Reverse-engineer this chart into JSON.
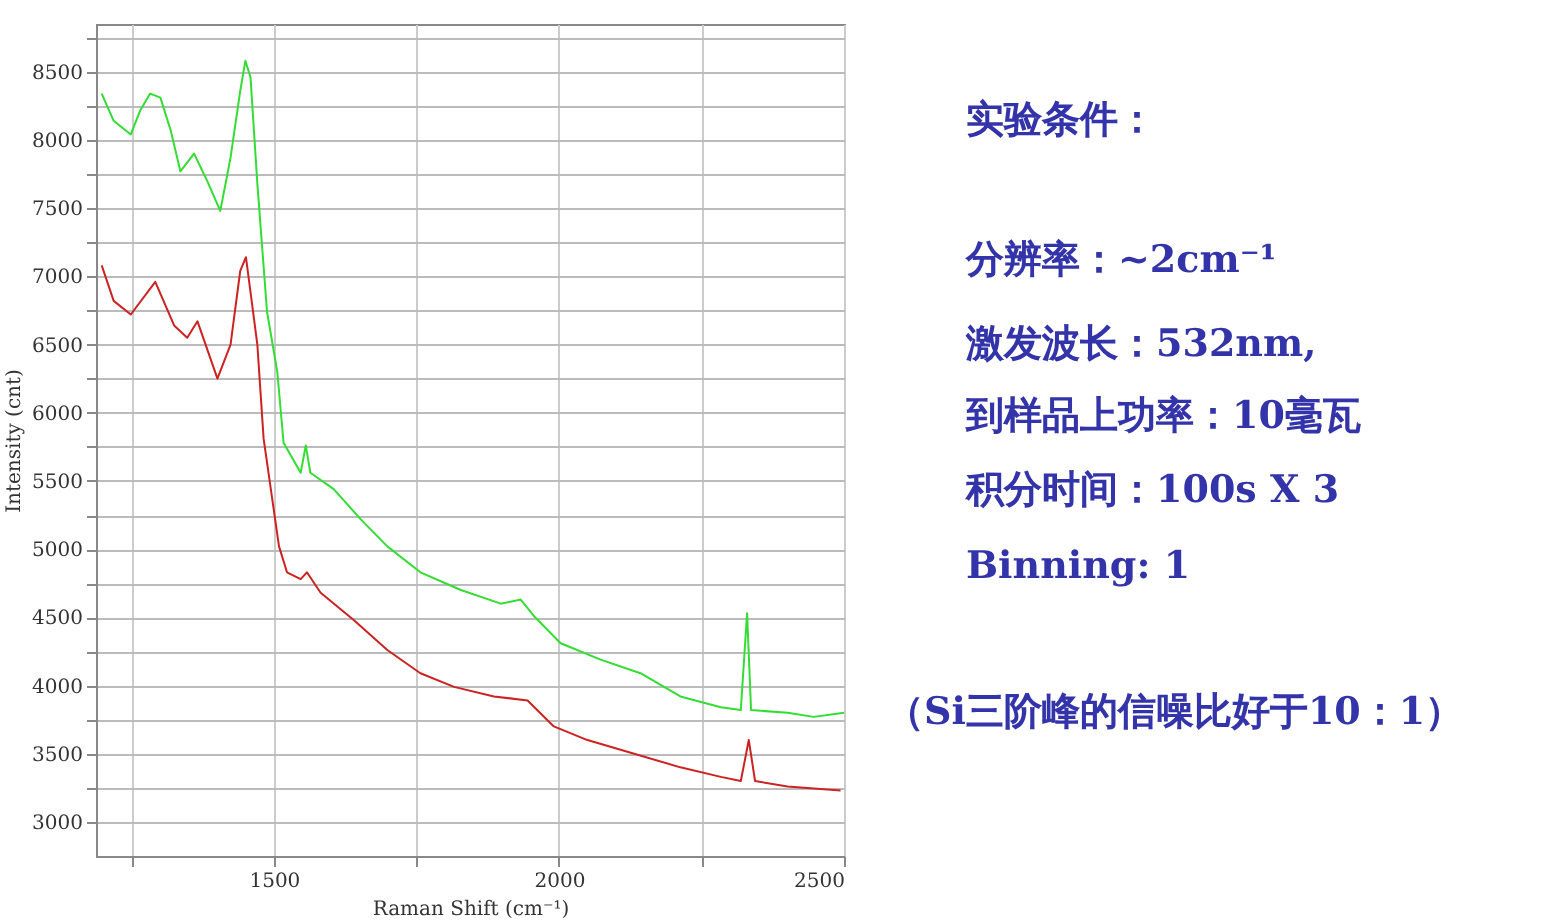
{
  "chart_data": {
    "type": "line",
    "xlabel": "Raman Shift (cm⁻¹)",
    "ylabel": "Intensity (cnt)",
    "xlim": [
      1188,
      2500
    ],
    "ylim": [
      2750,
      8850
    ],
    "xticks": [
      {
        "value": 1250,
        "label": null
      },
      1500,
      {
        "value": 1750,
        "label": null
      },
      2000,
      {
        "value": 2250,
        "label": null
      },
      2500
    ],
    "yticks": [
      3000,
      {
        "value": 3250,
        "label": null
      },
      3500,
      {
        "value": 3750,
        "label": null
      },
      4000,
      {
        "value": 4250,
        "label": null
      },
      4500,
      {
        "value": 4750,
        "label": null
      },
      5000,
      {
        "value": 5250,
        "label": null
      },
      5500,
      {
        "value": 5750,
        "label": null
      },
      6000,
      {
        "value": 6250,
        "label": null
      },
      6500,
      {
        "value": 6750,
        "label": null
      },
      7000,
      {
        "value": 7250,
        "label": null
      },
      7500,
      {
        "value": 7750,
        "label": null
      },
      8000,
      {
        "value": 8250,
        "label": null
      },
      8500,
      {
        "value": 8750,
        "label": null
      }
    ],
    "grid": true,
    "marker": "none",
    "line_style": "solid",
    "series": [
      {
        "color": "#33dd33",
        "x": [
          1198,
          1219,
          1249,
          1266,
          1283,
          1301,
          1319,
          1336,
          1360,
          1383,
          1406,
          1424,
          1441,
          1450,
          1459,
          1471,
          1488,
          1506,
          1517,
          1547,
          1556,
          1564,
          1605,
          1652,
          1699,
          1757,
          1828,
          1898,
          1933,
          1956,
          2003,
          2073,
          2143,
          2213,
          2284,
          2319,
          2330,
          2337,
          2401,
          2447,
          2500
        ],
        "values": [
          8340,
          8140,
          8040,
          8220,
          8340,
          8310,
          8070,
          7770,
          7900,
          7700,
          7480,
          7870,
          8360,
          8580,
          8460,
          7680,
          6740,
          6300,
          5780,
          5560,
          5760,
          5560,
          5440,
          5220,
          5020,
          4830,
          4700,
          4600,
          4630,
          4510,
          4310,
          4190,
          4090,
          3920,
          3840,
          3820,
          4530,
          3820,
          3800,
          3770,
          3800
        ]
      },
      {
        "color": "#cc2222",
        "x": [
          1198,
          1219,
          1249,
          1292,
          1325,
          1348,
          1366,
          1401,
          1424,
          1441,
          1451,
          1471,
          1482,
          1509,
          1523,
          1547,
          1558,
          1582,
          1640,
          1699,
          1757,
          1816,
          1886,
          1945,
          1991,
          2050,
          2132,
          2213,
          2284,
          2319,
          2333,
          2344,
          2401,
          2494
        ],
        "values": [
          7080,
          6820,
          6720,
          6960,
          6640,
          6550,
          6670,
          6250,
          6500,
          7040,
          7140,
          6500,
          5810,
          5020,
          4830,
          4780,
          4830,
          4680,
          4480,
          4260,
          4090,
          3990,
          3920,
          3890,
          3700,
          3600,
          3500,
          3400,
          3330,
          3300,
          3600,
          3300,
          3260,
          3230
        ]
      }
    ],
    "annotations": [
      "实验条件：",
      "分辨率：~2cm⁻¹",
      "激发波长：532nm,",
      "到样品上功率：10毫瓦",
      "积分时间：100s X 3",
      "Binning: 1",
      "（Si三阶峰的信噪比好于10：1）"
    ]
  }
}
